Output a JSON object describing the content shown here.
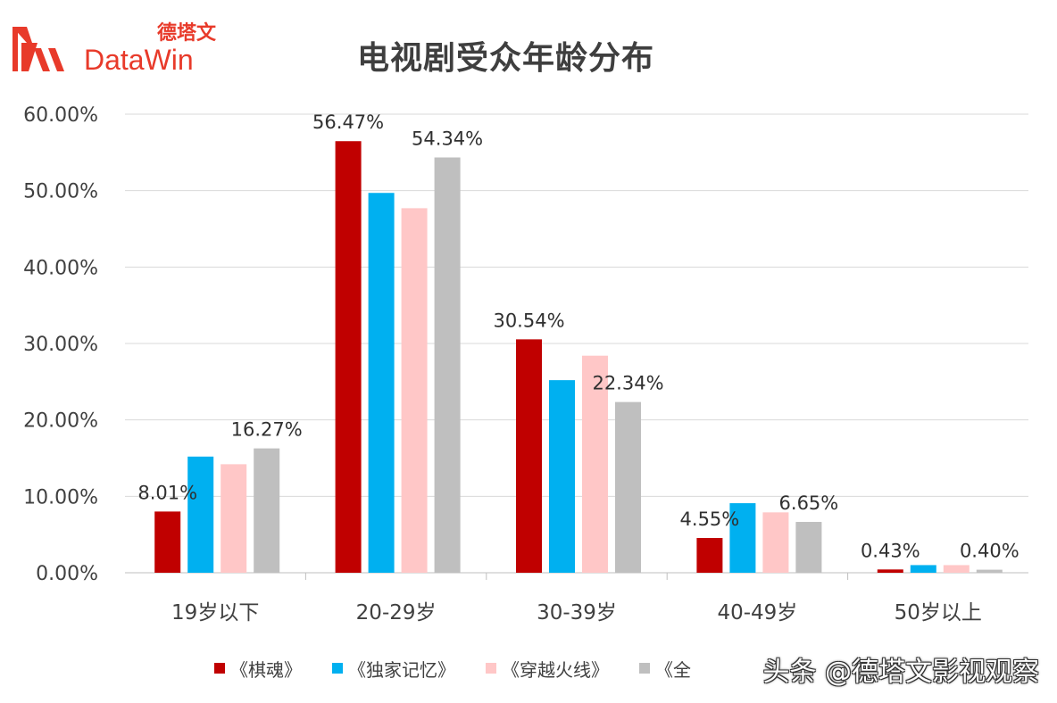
{
  "logo": {
    "cn": "德塔文",
    "en": "DataWin"
  },
  "watermark": "头条 @德塔文影视观察",
  "colors": [
    "#c00000",
    "#00b0f0",
    "#ffc7c7",
    "#bfbfbf"
  ],
  "chart_data": {
    "type": "bar",
    "title": "电视剧受众年龄分布",
    "xlabel": "",
    "ylabel": "",
    "ylim": [
      0,
      0.6
    ],
    "yticks": [
      "0.00%",
      "10.00%",
      "20.00%",
      "30.00%",
      "40.00%",
      "50.00%",
      "60.00%"
    ],
    "grid": true,
    "legend_position": "bottom",
    "categories": [
      "19岁以下",
      "20-29岁",
      "30-39岁",
      "40-49岁",
      "50岁以上"
    ],
    "series": [
      {
        "name": "《棋魂》",
        "values": [
          0.0801,
          0.5647,
          0.3054,
          0.0455,
          0.0043
        ]
      },
      {
        "name": "《独家记忆》",
        "values": [
          0.152,
          0.497,
          0.252,
          0.091,
          0.01
        ]
      },
      {
        "name": "《穿越火线》",
        "values": [
          0.142,
          0.477,
          0.284,
          0.079,
          0.01
        ]
      },
      {
        "name": "《全",
        "values": [
          0.1627,
          0.5434,
          0.2234,
          0.0665,
          0.004
        ]
      }
    ],
    "data_labels": [
      {
        "category": 0,
        "series": 0,
        "text": "8.01%"
      },
      {
        "category": 0,
        "series": 3,
        "text": "16.27%"
      },
      {
        "category": 1,
        "series": 0,
        "text": "56.47%"
      },
      {
        "category": 1,
        "series": 3,
        "text": "54.34%"
      },
      {
        "category": 2,
        "series": 0,
        "text": "30.54%"
      },
      {
        "category": 2,
        "series": 3,
        "text": "22.34%"
      },
      {
        "category": 3,
        "series": 0,
        "text": "4.55%"
      },
      {
        "category": 3,
        "series": 3,
        "text": "6.65%"
      },
      {
        "category": 4,
        "series": 0,
        "text": "0.43%"
      },
      {
        "category": 4,
        "series": 3,
        "text": "0.40%"
      }
    ]
  }
}
